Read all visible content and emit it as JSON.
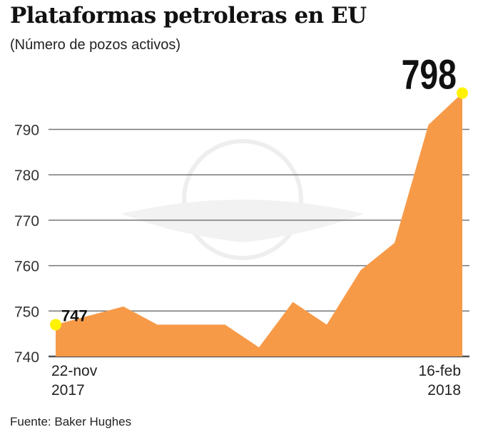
{
  "title": "Plataformas petroleras en EU",
  "subtitle": "(Número de pozos activos)",
  "source": "Fuente: Baker Hughes",
  "chart_data": {
    "type": "area",
    "title": "Plataformas petroleras en EU",
    "subtitle": "(Número de pozos activos)",
    "xlabel": "",
    "ylabel": "",
    "ylim": [
      740,
      798
    ],
    "yticks": [
      740,
      750,
      760,
      770,
      780,
      790
    ],
    "grid": true,
    "x_labels": [
      {
        "index": 0,
        "line1": "22-nov",
        "line2": "2017"
      },
      {
        "index": 12,
        "line1": "16-feb",
        "line2": "2018"
      }
    ],
    "values": [
      747,
      749,
      751,
      747,
      747,
      747,
      742,
      752,
      747,
      759,
      765,
      791,
      798
    ],
    "annotations": [
      {
        "index": 0,
        "text": "747"
      },
      {
        "index": 12,
        "text": "798"
      }
    ],
    "colors": {
      "fill": "#F79A48",
      "marker": "#FFF200",
      "grid": "#777777"
    }
  }
}
